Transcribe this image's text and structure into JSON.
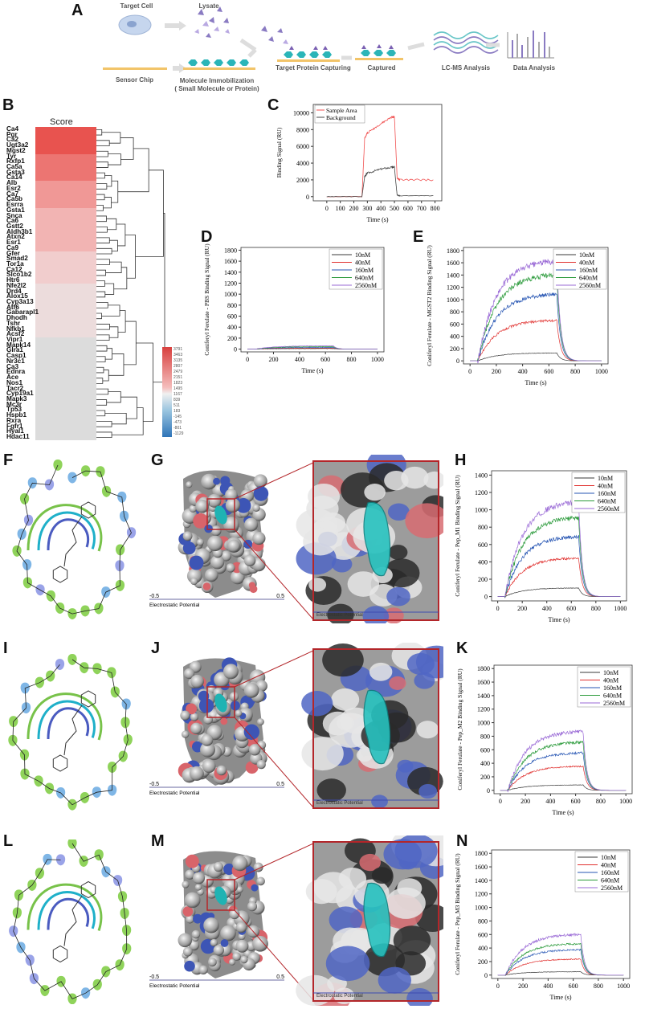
{
  "panels": {
    "A": "A",
    "B": "B",
    "C": "C",
    "D": "D",
    "E": "E",
    "F": "F",
    "G": "G",
    "H": "H",
    "I": "I",
    "J": "J",
    "K": "K",
    "L": "L",
    "M": "M",
    "N": "N"
  },
  "workflow": {
    "target_cell": "Target Cell",
    "lysate": "Lysate",
    "sensor_chip": "Sensor Chip",
    "immobilization_line1": "Molecule Immobilization",
    "immobilization_line2": "( Small Molecule or Protein)",
    "capturing": "Target Protein Capturing",
    "captured": "Captured",
    "lcms": "LC-MS Analysis",
    "data_analysis": "Data Analysis"
  },
  "heatmap": {
    "title": "Score",
    "genes": [
      "Ca4",
      "Pgr",
      "Ca2",
      "Ugt3a2",
      "Mgst2",
      "Tyr",
      "Rxfp1",
      "Ca5a",
      "Gsta3",
      "Ca14",
      "Alb",
      "Esr2",
      "Ca7",
      "Ca5b",
      "Esrra",
      "Gsta1",
      "Snca",
      "Ca6",
      "Gstt2",
      "Aldh3b1",
      "Atxn2",
      "Esr1",
      "Ca9",
      "Gfer",
      "Smad2",
      "Tor1a",
      "Ca12",
      "Slco1b2",
      "Htr6",
      "Nfe2l2",
      "Drd4",
      "Alox15",
      "Cyp3a13",
      "Atf6",
      "Gabarapl1",
      "Dhodh",
      "Tshr",
      "Nfkb1",
      "Acsf2",
      "Vipr1",
      "Mapk14",
      "Glra1",
      "Casp1",
      "Nr3c1",
      "Ca3",
      "Ednra",
      "Ace",
      "Nos1",
      "Tacr2",
      "Cyp19a1",
      "Mapk3",
      "Mc3r",
      "Tp53",
      "Hspb1",
      "Rxra",
      "Fgfr1",
      "Hyal1",
      "Hdac11"
    ],
    "colorbar_ticks": [
      "3791",
      "3463",
      "3135",
      "2807",
      "2479",
      "2151",
      "1823",
      "1495",
      "1167",
      "839",
      "511",
      "183",
      "-145",
      "-473",
      "-801",
      "-1129"
    ],
    "block_colors": [
      "#e8534f",
      "#ec7572",
      "#f09896",
      "#f2b4b3",
      "#f1cdcd",
      "#ecdcdc",
      "#dcdcdc"
    ]
  },
  "colors": {
    "s10": "#3a3a3a",
    "s40": "#e0312f",
    "s160": "#2655b3",
    "s640": "#2a9a3a",
    "s2560": "#9a6ad6",
    "sample": "#f05050",
    "background": "#444444"
  },
  "chart_data": [
    {
      "id": "C",
      "type": "line",
      "xlabel": "Time (s)",
      "ylabel": "Binding Signal (RU)",
      "xlim": [
        -100,
        850
      ],
      "ylim": [
        -500,
        11000
      ],
      "xticks": [
        0,
        100,
        200,
        300,
        400,
        500,
        600,
        700,
        800
      ],
      "yticks": [
        0,
        2000,
        4000,
        6000,
        8000,
        10000
      ],
      "legend": "top-left",
      "series": [
        {
          "name": "Sample Area",
          "color": "#f05050",
          "x": [
            0,
            260,
            280,
            300,
            400,
            480,
            500,
            520,
            540,
            800
          ],
          "y": [
            0,
            0,
            7000,
            7600,
            8700,
            9500,
            9500,
            2200,
            2000,
            2000
          ]
        },
        {
          "name": "Background",
          "color": "#444444",
          "x": [
            0,
            260,
            280,
            300,
            400,
            480,
            500,
            520,
            540,
            800
          ],
          "y": [
            0,
            0,
            2400,
            2800,
            3300,
            3500,
            3500,
            200,
            100,
            100
          ]
        }
      ]
    },
    {
      "id": "D",
      "type": "line",
      "xlabel": "Time (s)",
      "ylabel": "Coniferyl Ferulate - PBS Binding Signal (RU)",
      "xlim": [
        -50,
        1050
      ],
      "ylim": [
        -50,
        1850
      ],
      "xticks": [
        0,
        200,
        400,
        600,
        800,
        1000
      ],
      "yticks": [
        0,
        200,
        400,
        600,
        800,
        1000,
        1200,
        1400,
        1600,
        1800
      ],
      "legend": "top-right",
      "plateaus": [
        10,
        20,
        30,
        45,
        60
      ],
      "on": 60,
      "off": 660
    },
    {
      "id": "E",
      "type": "line",
      "xlabel": "Time (s)",
      "ylabel": "Coniferyl Ferulate - MGST2 Binding Signal (RU)",
      "xlim": [
        -50,
        1050
      ],
      "ylim": [
        -50,
        1850
      ],
      "xticks": [
        0,
        200,
        400,
        600,
        800,
        1000
      ],
      "yticks": [
        0,
        200,
        400,
        600,
        800,
        1000,
        1200,
        1400,
        1600,
        1800
      ],
      "legend": "top-right",
      "plateaus": [
        130,
        670,
        1100,
        1420,
        1650
      ],
      "on": 60,
      "off": 660
    },
    {
      "id": "H",
      "type": "line",
      "xlabel": "Time (s)",
      "ylabel": "Coniferyl Ferulate - Pep_M1 Binding Signal (RU)",
      "xlim": [
        -50,
        1050
      ],
      "ylim": [
        -50,
        1450
      ],
      "xticks": [
        0,
        200,
        400,
        600,
        800,
        1000
      ],
      "yticks": [
        0,
        200,
        400,
        600,
        800,
        1000,
        1200,
        1400
      ],
      "legend": "top-right",
      "plateaus": [
        100,
        450,
        700,
        920,
        1100
      ],
      "on": 60,
      "off": 660
    },
    {
      "id": "K",
      "type": "line",
      "xlabel": "Time (s)",
      "ylabel": "Coniferyl Ferulate - Pep_M2 Binding Signal (RU)",
      "xlim": [
        -50,
        1050
      ],
      "ylim": [
        -50,
        1850
      ],
      "xticks": [
        0,
        200,
        400,
        600,
        800,
        1000
      ],
      "yticks": [
        0,
        200,
        400,
        600,
        800,
        1000,
        1200,
        1400,
        1600,
        1800
      ],
      "legend": "top-right",
      "plateaus": [
        80,
        360,
        560,
        720,
        880
      ],
      "on": 60,
      "off": 660
    },
    {
      "id": "N",
      "type": "line",
      "xlabel": "Time (s)",
      "ylabel": "Coniferyl Ferulate - Pep_M3 Binding Signal (RU)",
      "xlim": [
        -50,
        1050
      ],
      "ylim": [
        -50,
        1850
      ],
      "xticks": [
        0,
        200,
        400,
        600,
        800,
        1000
      ],
      "yticks": [
        0,
        200,
        400,
        600,
        800,
        1000,
        1200,
        1400,
        1600,
        1800
      ],
      "legend": "top-right",
      "plateaus": [
        50,
        240,
        380,
        470,
        610
      ],
      "on": 60,
      "off": 660
    }
  ],
  "concentrations": [
    "10nM",
    "40nM",
    "160nM",
    "640nM",
    "2560nM"
  ],
  "legendC": [
    "Sample Area",
    "Background"
  ],
  "ep": {
    "title": "Electrostatic Potential",
    "min": "-0.5",
    "max": "0.5",
    "inset": "Electrostatic Potential"
  }
}
